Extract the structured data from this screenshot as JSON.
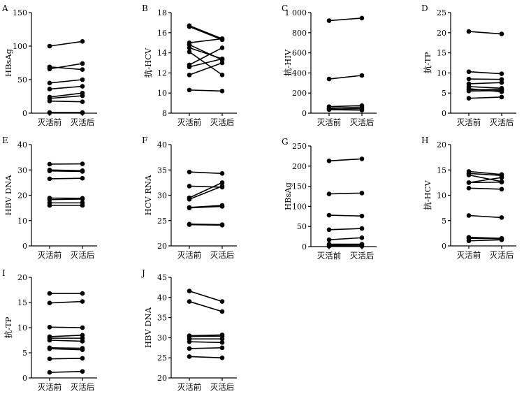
{
  "chart_data": [
    {
      "type": "line",
      "panel": "A",
      "ylabel": "HBsAg",
      "categories": [
        "灭活前",
        "灭活后"
      ],
      "ylim": [
        0,
        150
      ],
      "yticks": [
        0,
        50,
        100,
        150
      ],
      "ytick_labels": [
        "0",
        "50",
        "100",
        "150"
      ],
      "series": [
        {
          "values": [
            100,
            107
          ]
        },
        {
          "values": [
            69,
            65
          ]
        },
        {
          "values": [
            66,
            74
          ]
        },
        {
          "values": [
            45,
            50
          ]
        },
        {
          "values": [
            36,
            40
          ]
        },
        {
          "values": [
            24,
            30
          ]
        },
        {
          "values": [
            22,
            26
          ]
        },
        {
          "values": [
            18,
            17
          ]
        },
        {
          "values": [
            1,
            1
          ]
        },
        {
          "values": [
            0.5,
            0.5
          ]
        }
      ]
    },
    {
      "type": "line",
      "panel": "B",
      "ylabel": "抗-HCV",
      "categories": [
        "灭活前",
        "灭活后"
      ],
      "ylim": [
        8,
        18
      ],
      "yticks": [
        8,
        10,
        12,
        14,
        16,
        18
      ],
      "ytick_labels": [
        "8",
        "10",
        "12",
        "14",
        "16",
        "18"
      ],
      "series": [
        {
          "values": [
            16.7,
            15.4
          ]
        },
        {
          "values": [
            16.6,
            15.3
          ]
        },
        {
          "values": [
            15.0,
            15.4
          ]
        },
        {
          "values": [
            14.8,
            13.3
          ]
        },
        {
          "values": [
            14.5,
            13.4
          ]
        },
        {
          "values": [
            14.1,
            11.8
          ]
        },
        {
          "values": [
            12.8,
            14.5
          ]
        },
        {
          "values": [
            12.6,
            13.4
          ]
        },
        {
          "values": [
            11.8,
            13.0
          ]
        },
        {
          "values": [
            10.3,
            10.2
          ]
        }
      ]
    },
    {
      "type": "line",
      "panel": "C",
      "ylabel": "抗-HIV",
      "categories": [
        "灭活前",
        "灭活后"
      ],
      "ylim": [
        0,
        1000
      ],
      "yticks": [
        0,
        200,
        400,
        600,
        800,
        1000
      ],
      "ytick_labels": [
        "0",
        "200",
        "400",
        "600",
        "800",
        "1 000"
      ],
      "series": [
        {
          "values": [
            920,
            945
          ]
        },
        {
          "values": [
            340,
            375
          ]
        },
        {
          "values": [
            65,
            75
          ]
        },
        {
          "values": [
            50,
            60
          ]
        },
        {
          "values": [
            40,
            45
          ]
        },
        {
          "values": [
            35,
            30
          ]
        }
      ]
    },
    {
      "type": "line",
      "panel": "D",
      "ylabel": "抗-TP",
      "categories": [
        "灭活前",
        "灭活后"
      ],
      "ylim": [
        0,
        25
      ],
      "yticks": [
        0,
        5,
        10,
        15,
        20,
        25
      ],
      "ytick_labels": [
        "0",
        "5",
        "10",
        "15",
        "20",
        "25"
      ],
      "series": [
        {
          "values": [
            20.3,
            19.7
          ]
        },
        {
          "values": [
            10.3,
            9.8
          ]
        },
        {
          "values": [
            8.5,
            8.4
          ]
        },
        {
          "values": [
            7.3,
            7.6
          ]
        },
        {
          "values": [
            6.6,
            6.2
          ]
        },
        {
          "values": [
            6.1,
            5.3
          ]
        },
        {
          "values": [
            5.8,
            5.9
          ]
        },
        {
          "values": [
            5.5,
            5.6
          ]
        },
        {
          "values": [
            3.7,
            4.0
          ]
        }
      ]
    },
    {
      "type": "line",
      "panel": "E",
      "ylabel": "HBV DNA",
      "categories": [
        "灭活前",
        "灭活后"
      ],
      "ylim": [
        0,
        40
      ],
      "yticks": [
        0,
        10,
        20,
        30,
        40
      ],
      "ytick_labels": [
        "0",
        "10",
        "20",
        "30",
        "40"
      ],
      "series": [
        {
          "values": [
            32.3,
            32.4
          ]
        },
        {
          "values": [
            30.0,
            29.7
          ]
        },
        {
          "values": [
            29.6,
            29.4
          ]
        },
        {
          "values": [
            26.5,
            26.7
          ]
        },
        {
          "values": [
            18.9,
            18.8
          ]
        },
        {
          "values": [
            18.3,
            18.5
          ]
        },
        {
          "values": [
            17.0,
            17.0
          ]
        },
        {
          "values": [
            16.0,
            16.0
          ]
        }
      ]
    },
    {
      "type": "line",
      "panel": "F",
      "ylabel": "HCV RNA",
      "categories": [
        "灭活前",
        "灭活后"
      ],
      "ylim": [
        20,
        40
      ],
      "yticks": [
        20,
        25,
        30,
        35,
        40
      ],
      "ytick_labels": [
        "20",
        "25",
        "30",
        "35",
        "40"
      ],
      "series": [
        {
          "values": [
            34.6,
            34.3
          ]
        },
        {
          "values": [
            31.8,
            31.6
          ]
        },
        {
          "values": [
            29.5,
            32.5
          ]
        },
        {
          "values": [
            29.2,
            31.8
          ]
        },
        {
          "values": [
            27.6,
            28.0
          ]
        },
        {
          "values": [
            27.5,
            27.8
          ]
        },
        {
          "values": [
            24.3,
            24.2
          ]
        },
        {
          "values": [
            24.2,
            24.1
          ]
        }
      ]
    },
    {
      "type": "line",
      "panel": "G",
      "ylabel": "HBsAg",
      "categories": [
        "灭活前",
        "灭活后"
      ],
      "ylim": [
        0,
        250
      ],
      "yticks": [
        0,
        50,
        100,
        150,
        200,
        250
      ],
      "ytick_labels": [
        "0",
        "50",
        "100",
        "150",
        "200",
        "250"
      ],
      "series": [
        {
          "values": [
            213,
            218
          ]
        },
        {
          "values": [
            131,
            133
          ]
        },
        {
          "values": [
            78,
            76
          ]
        },
        {
          "values": [
            42,
            45
          ]
        },
        {
          "values": [
            17,
            22
          ]
        },
        {
          "values": [
            6,
            6
          ]
        },
        {
          "values": [
            3,
            4
          ]
        },
        {
          "values": [
            1,
            1
          ]
        }
      ]
    },
    {
      "type": "line",
      "panel": "H",
      "ylabel": "抗-HCV",
      "categories": [
        "灭活前",
        "灭活后"
      ],
      "ylim": [
        0,
        20
      ],
      "yticks": [
        0,
        5,
        10,
        15,
        20
      ],
      "ytick_labels": [
        "0",
        "5",
        "10",
        "15",
        "20"
      ],
      "series": [
        {
          "values": [
            14.7,
            14.1
          ]
        },
        {
          "values": [
            14.3,
            13.9
          ]
        },
        {
          "values": [
            14.0,
            12.7
          ]
        },
        {
          "values": [
            12.5,
            13.5
          ]
        },
        {
          "values": [
            12.5,
            12.6
          ]
        },
        {
          "values": [
            11.4,
            11.2
          ]
        },
        {
          "values": [
            6.0,
            5.6
          ]
        },
        {
          "values": [
            1.7,
            1.5
          ]
        },
        {
          "values": [
            1.5,
            1.4
          ]
        },
        {
          "values": [
            1.0,
            1.2
          ]
        }
      ]
    },
    {
      "type": "line",
      "panel": "I",
      "ylabel": "抗-TP",
      "categories": [
        "灭活前",
        "灭活后"
      ],
      "ylim": [
        0,
        20
      ],
      "yticks": [
        0,
        5,
        10,
        15,
        20
      ],
      "ytick_labels": [
        "0",
        "5",
        "10",
        "15",
        "20"
      ],
      "series": [
        {
          "values": [
            16.8,
            16.8
          ]
        },
        {
          "values": [
            14.9,
            15.2
          ]
        },
        {
          "values": [
            10.1,
            10.0
          ]
        },
        {
          "values": [
            8.2,
            8.5
          ]
        },
        {
          "values": [
            7.9,
            7.9
          ]
        },
        {
          "values": [
            7.5,
            7.3
          ]
        },
        {
          "values": [
            6.0,
            5.9
          ]
        },
        {
          "values": [
            5.8,
            5.6
          ]
        },
        {
          "values": [
            3.8,
            3.9
          ]
        },
        {
          "values": [
            1.1,
            1.3
          ]
        }
      ]
    },
    {
      "type": "line",
      "panel": "J",
      "ylabel": "HBV DNA",
      "categories": [
        "灭活前",
        "灭活后"
      ],
      "ylim": [
        20,
        45
      ],
      "yticks": [
        20,
        25,
        30,
        35,
        40,
        45
      ],
      "ytick_labels": [
        "20",
        "25",
        "30",
        "35",
        "40",
        "45"
      ],
      "series": [
        {
          "values": [
            41.6,
            39.0
          ]
        },
        {
          "values": [
            39.0,
            36.5
          ]
        },
        {
          "values": [
            30.5,
            30.7
          ]
        },
        {
          "values": [
            30.3,
            30.4
          ]
        },
        {
          "values": [
            29.7,
            29.7
          ]
        },
        {
          "values": [
            29.0,
            28.8
          ]
        },
        {
          "values": [
            27.3,
            27.5
          ]
        },
        {
          "values": [
            25.3,
            25.0
          ]
        }
      ]
    }
  ]
}
